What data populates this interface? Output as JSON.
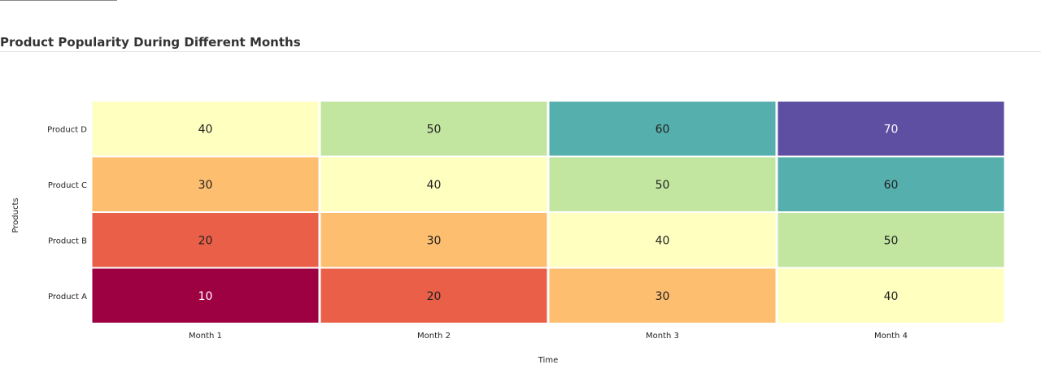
{
  "title": "Product Popularity During Different Months",
  "chart_data": {
    "type": "heatmap",
    "x_categories": [
      "Month 1",
      "Month 2",
      "Month 3",
      "Month 4"
    ],
    "y_categories": [
      "Product A",
      "Product B",
      "Product C",
      "Product D"
    ],
    "values": [
      [
        10,
        20,
        30,
        40
      ],
      [
        20,
        30,
        40,
        50
      ],
      [
        30,
        40,
        50,
        60
      ],
      [
        40,
        50,
        60,
        70
      ]
    ],
    "xlabel": "Time",
    "ylabel": "Products",
    "colorscale": "Spectral",
    "color_map": {
      "10": "#9e0142",
      "20": "#ea5f47",
      "30": "#fdbe6f",
      "40": "#ffffbf",
      "50": "#c2e69f",
      "60": "#55afad",
      "70": "#5e4fa2"
    }
  }
}
